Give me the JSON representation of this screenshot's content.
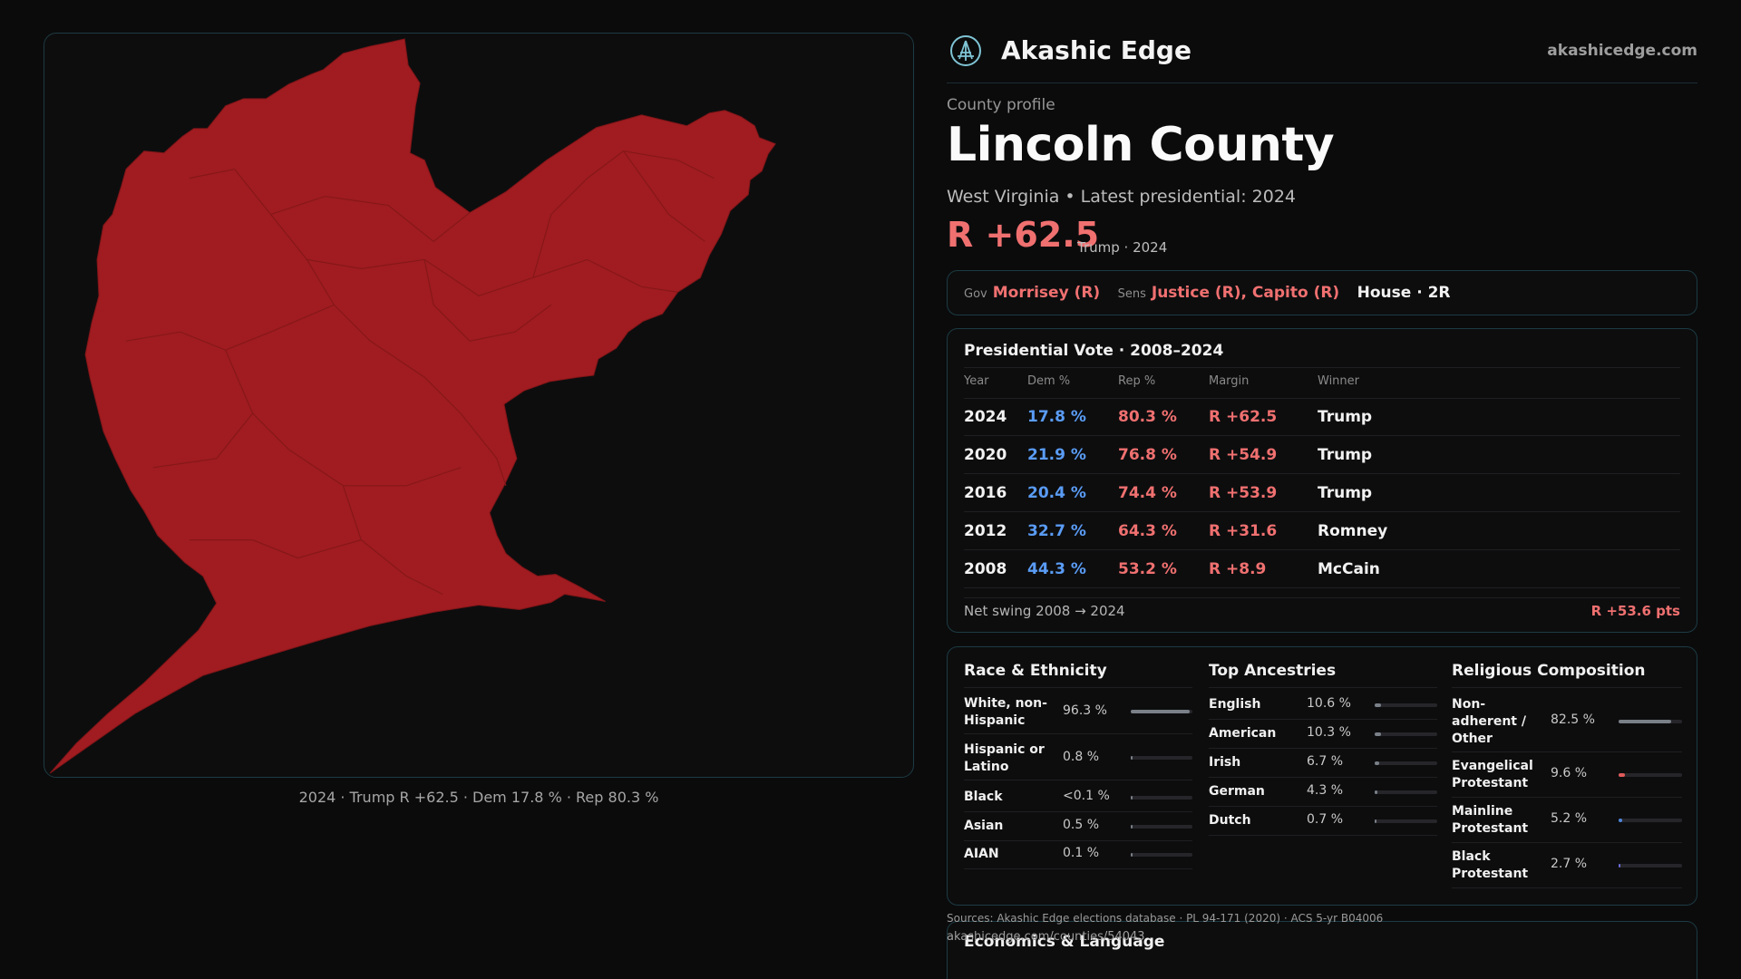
{
  "map": {
    "caption": "2024 · Trump R +62.5 · Dem 17.8 % · Rep 80.3 %",
    "fill_color": "#a01c20",
    "border_color": "#7d1518"
  },
  "header": {
    "brand": "Akashic Edge",
    "site": "akashicedge.com"
  },
  "profile": {
    "kicker": "County profile",
    "title": "Lincoln County",
    "subtitle": "West Virginia • Latest presidential: 2024",
    "margin": "R +62.5",
    "margin_note": "Trump · 2024"
  },
  "officials": {
    "gov_label": "Gov",
    "gov": "Morrisey (R)",
    "sens_label": "Sens",
    "sens": "Justice (R), Capito (R)",
    "house": "House · 2R"
  },
  "votes": {
    "title": "Presidential Vote · 2008–2024",
    "headers": [
      "Year",
      "Dem %",
      "Rep %",
      "Margin",
      "Winner"
    ],
    "rows": [
      {
        "year": "2024",
        "dem": "17.8 %",
        "rep": "80.3 %",
        "margin": "R +62.5",
        "winner": "Trump"
      },
      {
        "year": "2020",
        "dem": "21.9 %",
        "rep": "76.8 %",
        "margin": "R +54.9",
        "winner": "Trump"
      },
      {
        "year": "2016",
        "dem": "20.4 %",
        "rep": "74.4 %",
        "margin": "R +53.9",
        "winner": "Trump"
      },
      {
        "year": "2012",
        "dem": "32.7 %",
        "rep": "64.3 %",
        "margin": "R +31.6",
        "winner": "Romney"
      },
      {
        "year": "2008",
        "dem": "44.3 %",
        "rep": "53.2 %",
        "margin": "R +8.9",
        "winner": "McCain"
      }
    ],
    "swing_label": "Net swing 2008 → 2024",
    "swing_value": "R +53.6 pts"
  },
  "race": {
    "title": "Race & Ethnicity",
    "items": [
      {
        "label": "White, non-Hispanic",
        "value": "96.3 %",
        "pct": 96.3
      },
      {
        "label": "Hispanic or Latino",
        "value": "0.8 %",
        "pct": 0.8
      },
      {
        "label": "Black",
        "value": "<0.1 %",
        "pct": 0.05
      },
      {
        "label": "Asian",
        "value": "0.5 %",
        "pct": 0.5
      },
      {
        "label": "AIAN",
        "value": "0.1 %",
        "pct": 0.1
      }
    ]
  },
  "ancestry": {
    "title": "Top Ancestries",
    "items": [
      {
        "label": "English",
        "value": "10.6 %",
        "pct": 10.6
      },
      {
        "label": "American",
        "value": "10.3 %",
        "pct": 10.3
      },
      {
        "label": "Irish",
        "value": "6.7 %",
        "pct": 6.7
      },
      {
        "label": "German",
        "value": "4.3 %",
        "pct": 4.3
      },
      {
        "label": "Dutch",
        "value": "0.7 %",
        "pct": 0.7
      }
    ]
  },
  "religion": {
    "title": "Religious Composition",
    "items": [
      {
        "label": "Non-adherent / Other",
        "value": "82.5 %",
        "pct": 82.5,
        "color": "#7a8088"
      },
      {
        "label": "Evangelical Protestant",
        "value": "9.6 %",
        "pct": 9.6,
        "color": "#e05a5a"
      },
      {
        "label": "Mainline Protestant",
        "value": "5.2 %",
        "pct": 5.2,
        "color": "#4d86d8"
      },
      {
        "label": "Black Protestant",
        "value": "2.7 %",
        "pct": 2.7,
        "color": "#6a6ad8"
      }
    ]
  },
  "footer": {
    "sources": "Sources: Akashic Edge elections database · PL 94-171 (2020) · ACS 5-yr B04006",
    "url": "akashicedge.com/counties/54043",
    "econ_title": "Economics & Language"
  },
  "colors": {
    "dem": "#5a9cf5",
    "rep": "#f07070",
    "accent_border": "#1c3b43",
    "neutral_bar": "#7a8088"
  }
}
